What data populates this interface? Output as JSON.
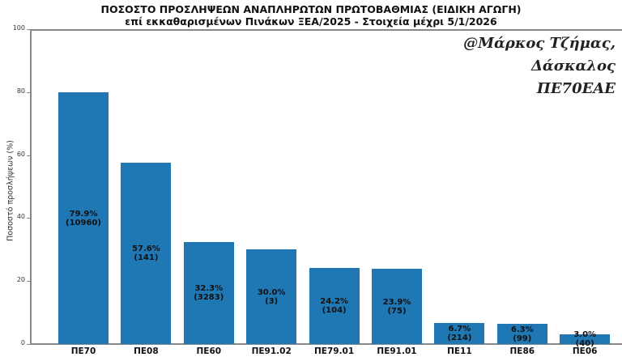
{
  "chart_data": {
    "type": "bar",
    "title": "ΠΟΣΟΣΤΟ ΠΡΟΣΛΗΨΕΩΝ ΑΝΑΠΛΗΡΩΤΩΝ ΠΡΩΤΟΒΑΘΜΙΑΣ (ΕΙΔΙΚΗ ΑΓΩΓΗ)",
    "subtitle": "επί εκκαθαρισμένων Πινάκων ΞΕΑ/2025 - Στοιχεία μέχρι 5/1/2026",
    "xlabel": "",
    "ylabel": "Ποσοστό προσλήψεων (%)",
    "ylim": [
      0,
      100
    ],
    "yticks": [
      0,
      20,
      40,
      60,
      80,
      100
    ],
    "grid": false,
    "categories": [
      "ΠΕ70",
      "ΠΕ08",
      "ΠΕ60",
      "ΠΕ91.02",
      "ΠΕ79.01",
      "ΠΕ91.01",
      "ΠΕ11",
      "ΠΕ86",
      "ΠΕ06"
    ],
    "values": [
      79.9,
      57.6,
      32.3,
      30.0,
      24.2,
      23.9,
      6.7,
      6.3,
      3.0
    ],
    "counts": [
      10960,
      141,
      3283,
      3,
      104,
      75,
      214,
      99,
      40
    ],
    "bar_labels": [
      {
        "pct": "79.9%",
        "count": "(10960)"
      },
      {
        "pct": "57.6%",
        "count": "(141)"
      },
      {
        "pct": "32.3%",
        "count": "(3283)"
      },
      {
        "pct": "30.0%",
        "count": "(3)"
      },
      {
        "pct": "24.2%",
        "count": "(104)"
      },
      {
        "pct": "23.9%",
        "count": "(75)"
      },
      {
        "pct": "6.7%",
        "count": "(214)"
      },
      {
        "pct": "6.3%",
        "count": "(99)"
      },
      {
        "pct": "3.0%",
        "count": "(40)"
      }
    ],
    "color": "#1f77b4",
    "annotation": [
      "@Μάρκος Τζήμας,",
      "Δάσκαλος ΠΕ70ΕΑΕ"
    ]
  },
  "ytick_labels": [
    "0",
    "20",
    "40",
    "60",
    "80",
    "100"
  ]
}
